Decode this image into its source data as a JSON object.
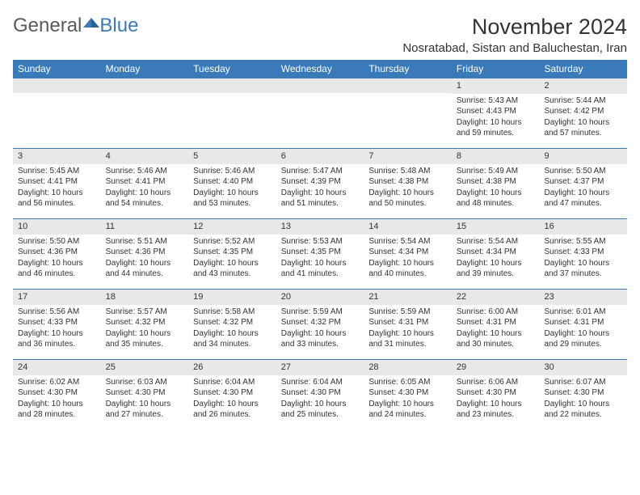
{
  "logo": {
    "text1": "General",
    "text2": "Blue"
  },
  "title": "November 2024",
  "location": "Nosratabad, Sistan and Baluchestan, Iran",
  "colors": {
    "header_bg": "#3a7ab8",
    "daynum_bg": "#e8e8e8",
    "row_border": "#3a7ab8",
    "text": "#333333",
    "logo_gray": "#5a5a5a",
    "logo_blue": "#3a7ab8"
  },
  "weekdays": [
    "Sunday",
    "Monday",
    "Tuesday",
    "Wednesday",
    "Thursday",
    "Friday",
    "Saturday"
  ],
  "weeks": [
    [
      {
        "day": "",
        "sunrise": "",
        "sunset": "",
        "daylight": ""
      },
      {
        "day": "",
        "sunrise": "",
        "sunset": "",
        "daylight": ""
      },
      {
        "day": "",
        "sunrise": "",
        "sunset": "",
        "daylight": ""
      },
      {
        "day": "",
        "sunrise": "",
        "sunset": "",
        "daylight": ""
      },
      {
        "day": "",
        "sunrise": "",
        "sunset": "",
        "daylight": ""
      },
      {
        "day": "1",
        "sunrise": "Sunrise: 5:43 AM",
        "sunset": "Sunset: 4:43 PM",
        "daylight": "Daylight: 10 hours and 59 minutes."
      },
      {
        "day": "2",
        "sunrise": "Sunrise: 5:44 AM",
        "sunset": "Sunset: 4:42 PM",
        "daylight": "Daylight: 10 hours and 57 minutes."
      }
    ],
    [
      {
        "day": "3",
        "sunrise": "Sunrise: 5:45 AM",
        "sunset": "Sunset: 4:41 PM",
        "daylight": "Daylight: 10 hours and 56 minutes."
      },
      {
        "day": "4",
        "sunrise": "Sunrise: 5:46 AM",
        "sunset": "Sunset: 4:41 PM",
        "daylight": "Daylight: 10 hours and 54 minutes."
      },
      {
        "day": "5",
        "sunrise": "Sunrise: 5:46 AM",
        "sunset": "Sunset: 4:40 PM",
        "daylight": "Daylight: 10 hours and 53 minutes."
      },
      {
        "day": "6",
        "sunrise": "Sunrise: 5:47 AM",
        "sunset": "Sunset: 4:39 PM",
        "daylight": "Daylight: 10 hours and 51 minutes."
      },
      {
        "day": "7",
        "sunrise": "Sunrise: 5:48 AM",
        "sunset": "Sunset: 4:38 PM",
        "daylight": "Daylight: 10 hours and 50 minutes."
      },
      {
        "day": "8",
        "sunrise": "Sunrise: 5:49 AM",
        "sunset": "Sunset: 4:38 PM",
        "daylight": "Daylight: 10 hours and 48 minutes."
      },
      {
        "day": "9",
        "sunrise": "Sunrise: 5:50 AM",
        "sunset": "Sunset: 4:37 PM",
        "daylight": "Daylight: 10 hours and 47 minutes."
      }
    ],
    [
      {
        "day": "10",
        "sunrise": "Sunrise: 5:50 AM",
        "sunset": "Sunset: 4:36 PM",
        "daylight": "Daylight: 10 hours and 46 minutes."
      },
      {
        "day": "11",
        "sunrise": "Sunrise: 5:51 AM",
        "sunset": "Sunset: 4:36 PM",
        "daylight": "Daylight: 10 hours and 44 minutes."
      },
      {
        "day": "12",
        "sunrise": "Sunrise: 5:52 AM",
        "sunset": "Sunset: 4:35 PM",
        "daylight": "Daylight: 10 hours and 43 minutes."
      },
      {
        "day": "13",
        "sunrise": "Sunrise: 5:53 AM",
        "sunset": "Sunset: 4:35 PM",
        "daylight": "Daylight: 10 hours and 41 minutes."
      },
      {
        "day": "14",
        "sunrise": "Sunrise: 5:54 AM",
        "sunset": "Sunset: 4:34 PM",
        "daylight": "Daylight: 10 hours and 40 minutes."
      },
      {
        "day": "15",
        "sunrise": "Sunrise: 5:54 AM",
        "sunset": "Sunset: 4:34 PM",
        "daylight": "Daylight: 10 hours and 39 minutes."
      },
      {
        "day": "16",
        "sunrise": "Sunrise: 5:55 AM",
        "sunset": "Sunset: 4:33 PM",
        "daylight": "Daylight: 10 hours and 37 minutes."
      }
    ],
    [
      {
        "day": "17",
        "sunrise": "Sunrise: 5:56 AM",
        "sunset": "Sunset: 4:33 PM",
        "daylight": "Daylight: 10 hours and 36 minutes."
      },
      {
        "day": "18",
        "sunrise": "Sunrise: 5:57 AM",
        "sunset": "Sunset: 4:32 PM",
        "daylight": "Daylight: 10 hours and 35 minutes."
      },
      {
        "day": "19",
        "sunrise": "Sunrise: 5:58 AM",
        "sunset": "Sunset: 4:32 PM",
        "daylight": "Daylight: 10 hours and 34 minutes."
      },
      {
        "day": "20",
        "sunrise": "Sunrise: 5:59 AM",
        "sunset": "Sunset: 4:32 PM",
        "daylight": "Daylight: 10 hours and 33 minutes."
      },
      {
        "day": "21",
        "sunrise": "Sunrise: 5:59 AM",
        "sunset": "Sunset: 4:31 PM",
        "daylight": "Daylight: 10 hours and 31 minutes."
      },
      {
        "day": "22",
        "sunrise": "Sunrise: 6:00 AM",
        "sunset": "Sunset: 4:31 PM",
        "daylight": "Daylight: 10 hours and 30 minutes."
      },
      {
        "day": "23",
        "sunrise": "Sunrise: 6:01 AM",
        "sunset": "Sunset: 4:31 PM",
        "daylight": "Daylight: 10 hours and 29 minutes."
      }
    ],
    [
      {
        "day": "24",
        "sunrise": "Sunrise: 6:02 AM",
        "sunset": "Sunset: 4:30 PM",
        "daylight": "Daylight: 10 hours and 28 minutes."
      },
      {
        "day": "25",
        "sunrise": "Sunrise: 6:03 AM",
        "sunset": "Sunset: 4:30 PM",
        "daylight": "Daylight: 10 hours and 27 minutes."
      },
      {
        "day": "26",
        "sunrise": "Sunrise: 6:04 AM",
        "sunset": "Sunset: 4:30 PM",
        "daylight": "Daylight: 10 hours and 26 minutes."
      },
      {
        "day": "27",
        "sunrise": "Sunrise: 6:04 AM",
        "sunset": "Sunset: 4:30 PM",
        "daylight": "Daylight: 10 hours and 25 minutes."
      },
      {
        "day": "28",
        "sunrise": "Sunrise: 6:05 AM",
        "sunset": "Sunset: 4:30 PM",
        "daylight": "Daylight: 10 hours and 24 minutes."
      },
      {
        "day": "29",
        "sunrise": "Sunrise: 6:06 AM",
        "sunset": "Sunset: 4:30 PM",
        "daylight": "Daylight: 10 hours and 23 minutes."
      },
      {
        "day": "30",
        "sunrise": "Sunrise: 6:07 AM",
        "sunset": "Sunset: 4:30 PM",
        "daylight": "Daylight: 10 hours and 22 minutes."
      }
    ]
  ]
}
